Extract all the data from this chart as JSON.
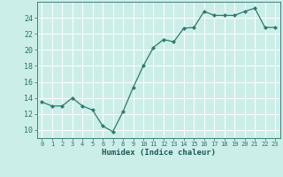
{
  "x": [
    0,
    1,
    2,
    3,
    4,
    5,
    6,
    7,
    8,
    9,
    10,
    11,
    12,
    13,
    14,
    15,
    16,
    17,
    18,
    19,
    20,
    21,
    22,
    23
  ],
  "y": [
    13.5,
    13.0,
    13.0,
    14.0,
    13.0,
    12.5,
    10.5,
    9.8,
    12.3,
    15.3,
    18.0,
    20.3,
    21.3,
    21.0,
    22.7,
    22.8,
    24.8,
    24.3,
    24.3,
    24.3,
    24.8,
    25.2,
    22.8,
    22.8
  ],
  "xlabel": "Humidex (Indice chaleur)",
  "ylim": [
    9.0,
    26.0
  ],
  "xlim": [
    -0.5,
    23.5
  ],
  "yticks": [
    10,
    12,
    14,
    16,
    18,
    20,
    22,
    24
  ],
  "xticks": [
    0,
    1,
    2,
    3,
    4,
    5,
    6,
    7,
    8,
    9,
    10,
    11,
    12,
    13,
    14,
    15,
    16,
    17,
    18,
    19,
    20,
    21,
    22,
    23
  ],
  "line_color": "#2d7a6e",
  "bg_color": "#cceee8",
  "grid_color": "#ffffff",
  "tick_color": "#2d6e6e",
  "label_color": "#1a5a5a"
}
